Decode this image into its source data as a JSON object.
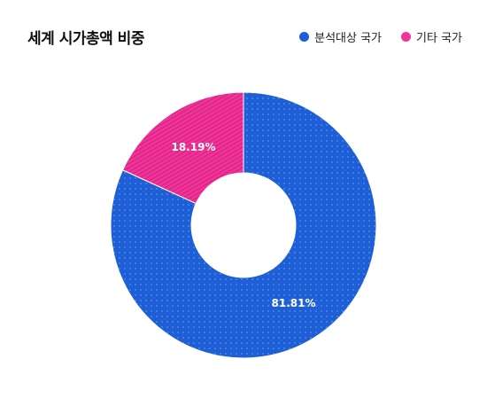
{
  "chart_data": {
    "type": "pie",
    "title": "세계 시가총액 비중",
    "donut": true,
    "legend_position": "top-right",
    "categories": [
      "분석대상 국가",
      "기타 국가"
    ],
    "values": [
      81.81,
      18.19
    ],
    "data_labels": [
      "81.81%",
      "18.19%"
    ],
    "colors": [
      "#1f5fd6",
      "#f0359a"
    ]
  }
}
